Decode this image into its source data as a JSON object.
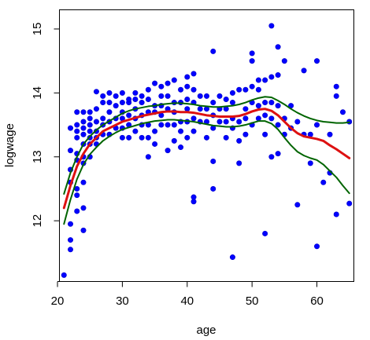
{
  "chart_data": {
    "type": "scatter",
    "title": "",
    "xlabel": "age",
    "ylabel": "logwage",
    "xlim": [
      20.3,
      65.7
    ],
    "ylim": [
      11.05,
      15.3
    ],
    "xticks": [
      20,
      30,
      40,
      50,
      60
    ],
    "yticks": [
      12,
      13,
      14,
      15
    ],
    "grid": false,
    "legend": "none",
    "colors": {
      "points": "#0000ff",
      "fit": "#dd1111",
      "band": "#006400",
      "axis": "#000000"
    },
    "points": [
      [
        21,
        11.15
      ],
      [
        22,
        11.55
      ],
      [
        22,
        11.7
      ],
      [
        22,
        11.95
      ],
      [
        22,
        12.6
      ],
      [
        22,
        12.8
      ],
      [
        22,
        13.1
      ],
      [
        22,
        13.45
      ],
      [
        23,
        12.15
      ],
      [
        23,
        12.4
      ],
      [
        23,
        12.5
      ],
      [
        23,
        12.95
      ],
      [
        23,
        13.05
      ],
      [
        23,
        13.3
      ],
      [
        23,
        13.4
      ],
      [
        23,
        13.5
      ],
      [
        23,
        13.7
      ],
      [
        24,
        11.85
      ],
      [
        24,
        12.2
      ],
      [
        24,
        12.6
      ],
      [
        24,
        12.9
      ],
      [
        24,
        13.0
      ],
      [
        24,
        13.2
      ],
      [
        24,
        13.35
      ],
      [
        24,
        13.45
      ],
      [
        24,
        13.55
      ],
      [
        24,
        13.7
      ],
      [
        25,
        13.0
      ],
      [
        25,
        13.2
      ],
      [
        25,
        13.3
      ],
      [
        25,
        13.4
      ],
      [
        25,
        13.5
      ],
      [
        25,
        13.6
      ],
      [
        25,
        13.7
      ],
      [
        26,
        13.2
      ],
      [
        26,
        13.3
      ],
      [
        26,
        13.4
      ],
      [
        26,
        13.55
      ],
      [
        26,
        13.75
      ],
      [
        26,
        14.02
      ],
      [
        27,
        13.35
      ],
      [
        27,
        13.5
      ],
      [
        27,
        13.6
      ],
      [
        27,
        13.85
      ],
      [
        27,
        13.95
      ],
      [
        28,
        13.35
      ],
      [
        28,
        13.55
      ],
      [
        28,
        13.7
      ],
      [
        28,
        13.85
      ],
      [
        28,
        14.0
      ],
      [
        29,
        13.45
      ],
      [
        29,
        13.6
      ],
      [
        29,
        13.8
      ],
      [
        29,
        13.95
      ],
      [
        30,
        13.3
      ],
      [
        30,
        13.45
      ],
      [
        30,
        13.6
      ],
      [
        30,
        13.7
      ],
      [
        30,
        13.85
      ],
      [
        30,
        14.0
      ],
      [
        31,
        13.3
      ],
      [
        31,
        13.5
      ],
      [
        31,
        13.65
      ],
      [
        31,
        13.85
      ],
      [
        31,
        13.9
      ],
      [
        32,
        13.4
      ],
      [
        32,
        13.6
      ],
      [
        32,
        13.75
      ],
      [
        32,
        13.9
      ],
      [
        32,
        14.0
      ],
      [
        33,
        13.3
      ],
      [
        33,
        13.5
      ],
      [
        33,
        13.65
      ],
      [
        33,
        13.85
      ],
      [
        33,
        13.95
      ],
      [
        34,
        13.0
      ],
      [
        34,
        13.3
      ],
      [
        34,
        13.5
      ],
      [
        34,
        13.7
      ],
      [
        34,
        13.9
      ],
      [
        34,
        14.05
      ],
      [
        35,
        13.2
      ],
      [
        35,
        13.4
      ],
      [
        35,
        13.7
      ],
      [
        35,
        13.8
      ],
      [
        35,
        14.15
      ],
      [
        36,
        13.5
      ],
      [
        36,
        13.65
      ],
      [
        36,
        13.8
      ],
      [
        36,
        13.95
      ],
      [
        36,
        14.1
      ],
      [
        37,
        13.1
      ],
      [
        37,
        13.5
      ],
      [
        37,
        13.75
      ],
      [
        37,
        13.95
      ],
      [
        37,
        14.15
      ],
      [
        38,
        13.25
      ],
      [
        38,
        13.5
      ],
      [
        38,
        13.7
      ],
      [
        38,
        13.85
      ],
      [
        38,
        14.2
      ],
      [
        39,
        13.15
      ],
      [
        39,
        13.4
      ],
      [
        39,
        13.55
      ],
      [
        39,
        13.85
      ],
      [
        39,
        14.05
      ],
      [
        40,
        13.3
      ],
      [
        40,
        13.55
      ],
      [
        40,
        13.75
      ],
      [
        40,
        13.9
      ],
      [
        40,
        14.1
      ],
      [
        40,
        14.25
      ],
      [
        41,
        12.3
      ],
      [
        41,
        12.37
      ],
      [
        41,
        13.4
      ],
      [
        41,
        13.6
      ],
      [
        41,
        13.85
      ],
      [
        41,
        14.05
      ],
      [
        41,
        14.3
      ],
      [
        42,
        13.55
      ],
      [
        42,
        13.75
      ],
      [
        42,
        13.95
      ],
      [
        43,
        13.3
      ],
      [
        43,
        13.55
      ],
      [
        43,
        13.75
      ],
      [
        43,
        13.95
      ],
      [
        44,
        12.5
      ],
      [
        44,
        12.93
      ],
      [
        44,
        13.45
      ],
      [
        44,
        13.65
      ],
      [
        44,
        13.85
      ],
      [
        44,
        14.65
      ],
      [
        45,
        13.55
      ],
      [
        45,
        13.75
      ],
      [
        45,
        13.95
      ],
      [
        46,
        13.3
      ],
      [
        46,
        13.55
      ],
      [
        46,
        13.75
      ],
      [
        46,
        13.9
      ],
      [
        47,
        11.43
      ],
      [
        47,
        13.45
      ],
      [
        47,
        13.6
      ],
      [
        47,
        13.85
      ],
      [
        47,
        14.0
      ],
      [
        48,
        12.9
      ],
      [
        48,
        13.25
      ],
      [
        48,
        13.55
      ],
      [
        48,
        14.05
      ],
      [
        49,
        13.35
      ],
      [
        49,
        13.6
      ],
      [
        49,
        13.75
      ],
      [
        49,
        14.05
      ],
      [
        50,
        13.5
      ],
      [
        50,
        13.85
      ],
      [
        50,
        14.1
      ],
      [
        50,
        14.5
      ],
      [
        50,
        14.62
      ],
      [
        51,
        13.6
      ],
      [
        51,
        13.8
      ],
      [
        51,
        14.05
      ],
      [
        51,
        14.2
      ],
      [
        52,
        11.8
      ],
      [
        52,
        13.35
      ],
      [
        52,
        13.65
      ],
      [
        52,
        13.85
      ],
      [
        52,
        14.2
      ],
      [
        53,
        13.0
      ],
      [
        53,
        13.6
      ],
      [
        53,
        13.85
      ],
      [
        53,
        14.25
      ],
      [
        53,
        15.05
      ],
      [
        54,
        13.05
      ],
      [
        54,
        13.5
      ],
      [
        54,
        13.8
      ],
      [
        54,
        14.28
      ],
      [
        54,
        14.72
      ],
      [
        55,
        13.35
      ],
      [
        55,
        13.6
      ],
      [
        55,
        14.5
      ],
      [
        56,
        13.45
      ],
      [
        56,
        13.8
      ],
      [
        57,
        12.25
      ],
      [
        57,
        13.55
      ],
      [
        58,
        13.35
      ],
      [
        58,
        14.35
      ],
      [
        59,
        12.9
      ],
      [
        59,
        13.35
      ],
      [
        60,
        11.6
      ],
      [
        60,
        13.5
      ],
      [
        60,
        14.5
      ],
      [
        61,
        12.6
      ],
      [
        62,
        12.75
      ],
      [
        62,
        13.35
      ],
      [
        63,
        12.1
      ],
      [
        63,
        13.95
      ],
      [
        63,
        14.1
      ],
      [
        64,
        13.7
      ],
      [
        65,
        12.27
      ],
      [
        65,
        13.55
      ]
    ],
    "series": [
      {
        "x": [
          21,
          22,
          23,
          24,
          25,
          26,
          27,
          28,
          29,
          30,
          31,
          32,
          33,
          34,
          35,
          36,
          37,
          38,
          39,
          40,
          41,
          42,
          43,
          44,
          45,
          46,
          47,
          48,
          49,
          50,
          51,
          52,
          53,
          54,
          55,
          56,
          57,
          58,
          59,
          60,
          61,
          62,
          63,
          64,
          65
        ],
        "y": [
          12.2,
          12.55,
          12.85,
          13.05,
          13.2,
          13.3,
          13.4,
          13.45,
          13.5,
          13.55,
          13.58,
          13.61,
          13.64,
          13.66,
          13.68,
          13.7,
          13.71,
          13.71,
          13.7,
          13.7,
          13.69,
          13.67,
          13.65,
          13.64,
          13.63,
          13.63,
          13.63,
          13.64,
          13.67,
          13.71,
          13.74,
          13.75,
          13.72,
          13.65,
          13.55,
          13.45,
          13.37,
          13.32,
          13.3,
          13.28,
          13.25,
          13.18,
          13.12,
          13.05,
          12.98
        ]
      },
      {
        "x": [
          21,
          22,
          23,
          24,
          25,
          26,
          27,
          28,
          29,
          30,
          31,
          32,
          33,
          34,
          35,
          36,
          37,
          38,
          39,
          40,
          41,
          42,
          43,
          44,
          45,
          46,
          47,
          48,
          49,
          50,
          51,
          52,
          53,
          54,
          55,
          56,
          57,
          58,
          59,
          60,
          61,
          62,
          63,
          64,
          65
        ],
        "y": [
          12.42,
          12.75,
          13.0,
          13.2,
          13.32,
          13.42,
          13.5,
          13.56,
          13.62,
          13.68,
          13.72,
          13.75,
          13.77,
          13.79,
          13.8,
          13.82,
          13.83,
          13.84,
          13.84,
          13.83,
          13.82,
          13.8,
          13.79,
          13.78,
          13.78,
          13.79,
          13.8,
          13.82,
          13.85,
          13.89,
          13.92,
          13.94,
          13.93,
          13.88,
          13.82,
          13.75,
          13.69,
          13.64,
          13.6,
          13.57,
          13.55,
          13.54,
          13.53,
          13.53,
          13.54
        ]
      },
      {
        "x": [
          21,
          22,
          23,
          24,
          25,
          26,
          27,
          28,
          29,
          30,
          31,
          32,
          33,
          34,
          35,
          36,
          37,
          38,
          39,
          40,
          41,
          42,
          43,
          44,
          45,
          46,
          47,
          48,
          49,
          50,
          51,
          52,
          53,
          54,
          55,
          56,
          57,
          58,
          59,
          60,
          61,
          62,
          63,
          64,
          65
        ],
        "y": [
          11.95,
          12.33,
          12.65,
          12.88,
          13.04,
          13.15,
          13.25,
          13.32,
          13.38,
          13.43,
          13.46,
          13.49,
          13.52,
          13.54,
          13.56,
          13.57,
          13.58,
          13.58,
          13.57,
          13.56,
          13.55,
          13.53,
          13.51,
          13.49,
          13.48,
          13.47,
          13.47,
          13.48,
          13.5,
          13.53,
          13.56,
          13.56,
          13.52,
          13.43,
          13.3,
          13.18,
          13.08,
          13.02,
          12.98,
          12.95,
          12.88,
          12.78,
          12.68,
          12.55,
          12.43
        ]
      }
    ]
  }
}
